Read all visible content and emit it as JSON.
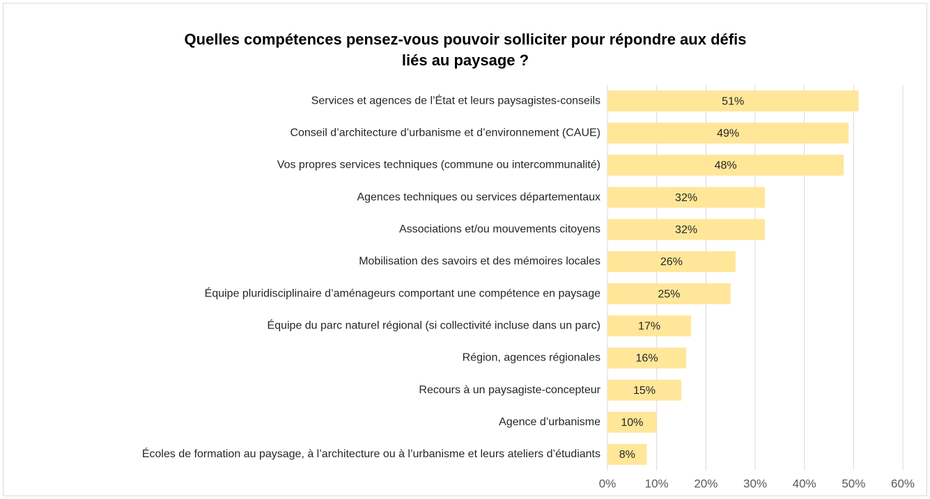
{
  "chart_data": {
    "type": "bar",
    "orientation": "horizontal",
    "title": [
      "Quelles compétences pensez-vous pouvoir solliciter pour répondre aux défis",
      "liés au paysage ?"
    ],
    "categories": [
      "Services et agences de l’État  et leurs paysagistes-conseils",
      "Conseil d’architecture d’urbanisme et d’environnement (CAUE)",
      "Vos propres services techniques (commune ou intercommunalité)",
      "Agences techniques ou services départementaux",
      "Associations et/ou mouvements citoyens",
      "Mobilisation des savoirs et des mémoires locales",
      "Équipe pluridisciplinaire d’aménageurs comportant une compétence en paysage",
      "Équipe du parc naturel régional (si collectivité incluse dans un parc)",
      "Région, agences régionales",
      "Recours à un paysagiste-concepteur",
      "Agence d’urbanisme",
      "Écoles de formation au paysage, à l’architecture ou à l’urbanisme et leurs ateliers d’étudiants"
    ],
    "values": [
      51,
      49,
      48,
      32,
      32,
      26,
      25,
      17,
      16,
      15,
      10,
      8
    ],
    "value_labels": [
      "51%",
      "49%",
      "48%",
      "32%",
      "32%",
      "26%",
      "25%",
      "17%",
      "16%",
      "15%",
      "10%",
      "8%"
    ],
    "color": "#ffe699",
    "xlim": [
      0,
      60
    ],
    "xticks": [
      {
        "value": 0,
        "label": "0%"
      },
      {
        "value": 10,
        "label": "10%"
      },
      {
        "value": 20,
        "label": "20%"
      },
      {
        "value": 30,
        "label": "30%"
      },
      {
        "value": 40,
        "label": "40%"
      },
      {
        "value": 50,
        "label": "50%"
      },
      {
        "value": 60,
        "label": "60%"
      }
    ],
    "grid": true
  }
}
